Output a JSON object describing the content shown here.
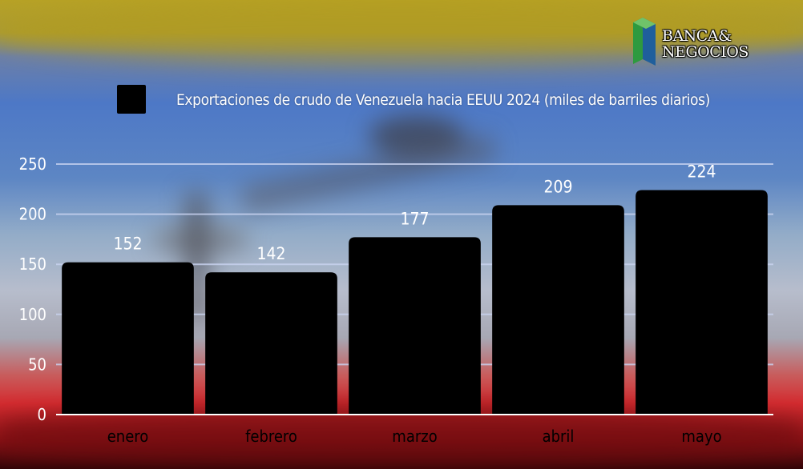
{
  "brand": {
    "line1": "BANCA&",
    "line2": "NEGOCIOS"
  },
  "colors": {
    "bar": "#000000",
    "grid": "#c9d3f0",
    "axis_text": "#ffffff",
    "category_text": "#000000"
  },
  "chart_data": {
    "type": "bar",
    "legend": "Exportaciones de crudo de Venezuela hacia EEUU 2024 (miles de barriles diarios)",
    "legend_position": "top",
    "series": [
      {
        "name": "Exportaciones de crudo de Venezuela hacia EEUU 2024 (miles de barriles diarios)",
        "values": [
          152,
          142,
          177,
          209,
          224
        ]
      }
    ],
    "categories": [
      "enero",
      "febrero",
      "marzo",
      "abril",
      "mayo"
    ],
    "ylim": [
      0,
      250
    ],
    "yticks": [
      0,
      50,
      100,
      150,
      200,
      250
    ],
    "grid": true,
    "data_labels": true
  }
}
